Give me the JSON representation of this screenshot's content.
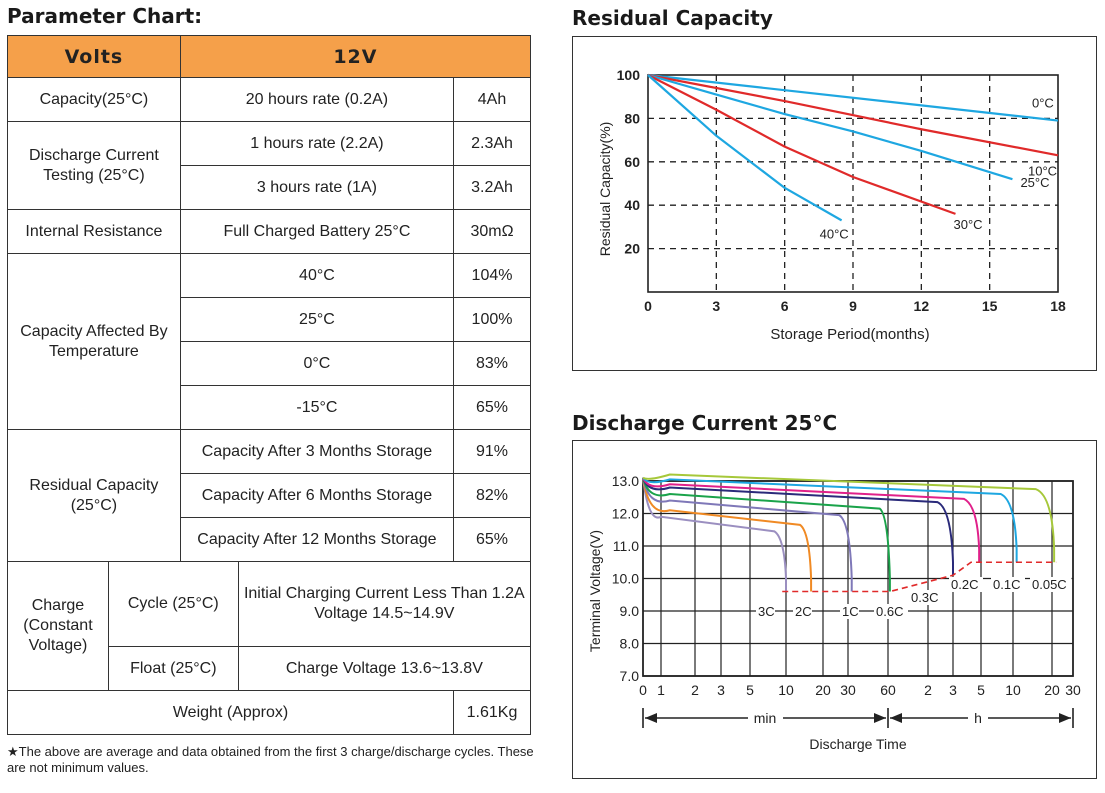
{
  "parameter_chart": {
    "title": "Parameter Chart:",
    "header": {
      "left": "Volts",
      "right": "12V"
    },
    "capacity": {
      "label": "Capacity(25°C)",
      "condition": "20 hours rate (0.2A)",
      "value": "4Ah"
    },
    "discharge": {
      "label": "Discharge Current Testing (25°C)",
      "rows": [
        {
          "condition": "1 hours rate (2.2A)",
          "value": "2.3Ah"
        },
        {
          "condition": "3 hours rate (1A)",
          "value": "3.2Ah"
        }
      ]
    },
    "internal_resistance": {
      "label": "Internal Resistance",
      "condition": "Full Charged Battery 25°C",
      "value": "30mΩ"
    },
    "temperature": {
      "label": "Capacity Affected By Temperature",
      "rows": [
        {
          "condition": "40°C",
          "value": "104%"
        },
        {
          "condition": "25°C",
          "value": "100%"
        },
        {
          "condition": "0°C",
          "value": "83%"
        },
        {
          "condition": "-15°C",
          "value": "65%"
        }
      ]
    },
    "residual": {
      "label": "Residual Capacity (25°C)",
      "rows": [
        {
          "condition": "Capacity After 3 Months Storage",
          "value": "91%"
        },
        {
          "condition": "Capacity After 6 Months Storage",
          "value": "82%"
        },
        {
          "condition": "Capacity After 12 Months Storage",
          "value": "65%"
        }
      ]
    },
    "charge": {
      "label": "Charge (Constant Voltage)",
      "cycle": {
        "label": "Cycle (25°C)",
        "value": "Initial Charging Current Less Than 1.2A Voltage 14.5~14.9V"
      },
      "float": {
        "label": "Float (25°C)",
        "value": "Charge Voltage 13.6~13.8V"
      }
    },
    "weight": {
      "label": "Weight (Approx)",
      "value": "1.61Kg"
    },
    "footnote": "★The above are average and data obtained from the first 3 charge/discharge cycles. These are not minimum values."
  },
  "chart_data": [
    {
      "type": "line",
      "title": "Residual Capacity",
      "xlabel": "Storage Period(months)",
      "ylabel": "Residual Capacity(%)",
      "xlim": [
        0,
        18
      ],
      "ylim": [
        0,
        100
      ],
      "x_ticks": [
        0,
        3,
        6,
        9,
        12,
        15,
        18
      ],
      "y_ticks": [
        20,
        40,
        60,
        80,
        100
      ],
      "grid": "dashed",
      "series": [
        {
          "name": "0°C",
          "color": "#1ea7e1",
          "x": [
            0,
            6,
            12,
            18
          ],
          "y": [
            100,
            93,
            86,
            79
          ]
        },
        {
          "name": "10°C",
          "color": "#e02a2a",
          "x": [
            0,
            6,
            12,
            18
          ],
          "y": [
            100,
            88,
            75,
            63
          ]
        },
        {
          "name": "25°C",
          "color": "#1ea7e1",
          "x": [
            0,
            3,
            6,
            9,
            12,
            16
          ],
          "y": [
            100,
            91,
            82,
            74,
            65,
            52
          ]
        },
        {
          "name": "30°C",
          "color": "#e02a2a",
          "x": [
            0,
            3,
            6,
            9,
            13.5
          ],
          "y": [
            100,
            84,
            67,
            53,
            36
          ]
        },
        {
          "name": "40°C",
          "color": "#1ea7e1",
          "x": [
            0,
            3,
            6,
            8.5
          ],
          "y": [
            100,
            72,
            48,
            33
          ]
        }
      ]
    },
    {
      "type": "line",
      "title": "Discharge Current 25°C",
      "xlabel": "Discharge Time",
      "ylabel": "Terminal Voltage(V)",
      "ylim": [
        7.0,
        13.0
      ],
      "y_ticks": [
        "7.0",
        "8.0",
        "9.0",
        "10.0",
        "11.0",
        "12.0",
        "13.0"
      ],
      "x_ticks": [
        "0",
        "1",
        "2",
        "3",
        "5",
        "10",
        "20",
        "30",
        "60",
        "2",
        "3",
        "5",
        "10",
        "20",
        "30"
      ],
      "x_unit_labels": {
        "min": "min",
        "h": "h"
      },
      "cutoff_line_color": "#e02a2a",
      "series": [
        {
          "name": "3C",
          "color": "#9b8fc0",
          "end_voltage": 9.6
        },
        {
          "name": "2C",
          "color": "#f08a24",
          "end_voltage": 9.6
        },
        {
          "name": "1C",
          "color": "#7f78b8",
          "end_voltage": 9.6
        },
        {
          "name": "0.6C",
          "color": "#1aa34a",
          "end_voltage": 9.6
        },
        {
          "name": "0.3C",
          "color": "#2a2a7a",
          "end_voltage": 10.1
        },
        {
          "name": "0.2C",
          "color": "#e0208a",
          "end_voltage": 10.5
        },
        {
          "name": "0.1C",
          "color": "#1ea7e1",
          "end_voltage": 10.5
        },
        {
          "name": "0.05C",
          "color": "#a6c83a",
          "end_voltage": 10.5
        }
      ]
    }
  ]
}
